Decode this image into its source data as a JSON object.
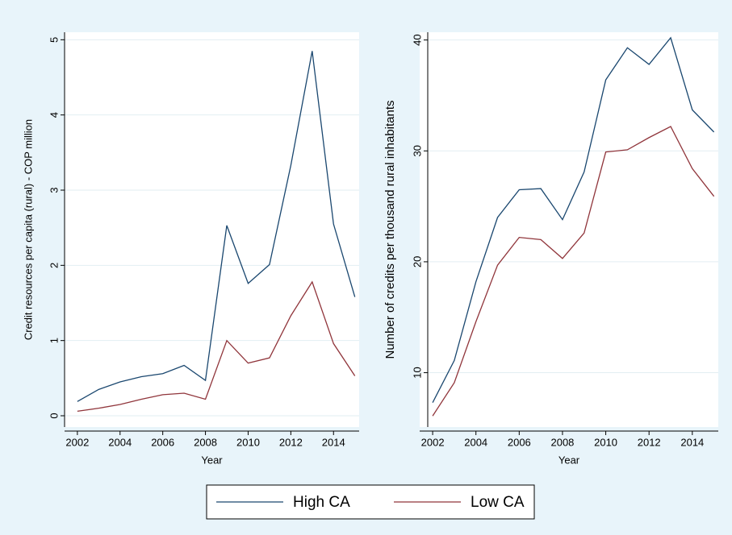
{
  "chart_data": [
    {
      "type": "line",
      "ylabel": "Credit resources per capita (rural) - COP million",
      "xlabel": "Year",
      "x": [
        2002,
        2003,
        2004,
        2005,
        2006,
        2007,
        2008,
        2009,
        2010,
        2011,
        2012,
        2013,
        2014,
        2015
      ],
      "series": [
        {
          "name": "High CA",
          "color": "#1a476f",
          "values": [
            0.19,
            0.35,
            0.45,
            0.52,
            0.56,
            0.67,
            0.47,
            2.53,
            1.76,
            2.01,
            3.33,
            4.85,
            2.55,
            1.58
          ]
        },
        {
          "name": "Low CA",
          "color": "#90353b",
          "values": [
            0.06,
            0.1,
            0.15,
            0.22,
            0.28,
            0.3,
            0.22,
            1.0,
            0.7,
            0.77,
            1.33,
            1.78,
            0.96,
            0.53
          ]
        }
      ],
      "xlim": [
        2001.4,
        2015.2
      ],
      "xticks": [
        2002,
        2004,
        2006,
        2008,
        2010,
        2012,
        2014
      ],
      "ylim": [
        -0.15,
        5.1
      ],
      "yticks": [
        0,
        1,
        2,
        3,
        4,
        5
      ],
      "grid": true
    },
    {
      "type": "line",
      "ylabel": "Number of credits per thousand rural inhabitants",
      "xlabel": "Year",
      "x": [
        2002,
        2003,
        2004,
        2005,
        2006,
        2007,
        2008,
        2009,
        2010,
        2011,
        2012,
        2013,
        2014,
        2015
      ],
      "series": [
        {
          "color": "#1a476f",
          "values": [
            7.3,
            11.1,
            18.2,
            24.0,
            26.5,
            26.6,
            23.8,
            28.1,
            36.4,
            39.3,
            37.8,
            40.2,
            33.7,
            31.7
          ]
        },
        {
          "color": "#90353b",
          "values": [
            6.1,
            9.1,
            14.6,
            19.7,
            22.2,
            22.0,
            20.3,
            22.6,
            29.9,
            30.1,
            31.2,
            32.2,
            28.4,
            25.9
          ]
        }
      ],
      "xlim": [
        2001.4,
        2015.2
      ],
      "xticks": [
        2002,
        2004,
        2006,
        2008,
        2010,
        2012,
        2014
      ],
      "ylim": [
        5.1,
        40.7
      ],
      "yticks": [
        10,
        20,
        30,
        40
      ],
      "grid": true
    }
  ]
}
